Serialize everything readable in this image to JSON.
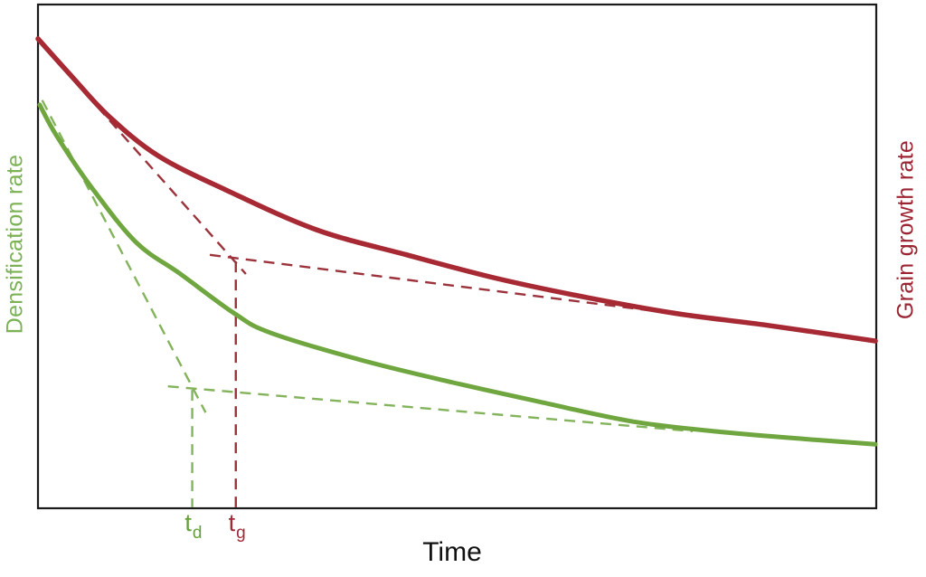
{
  "chart_data": {
    "type": "line",
    "title": "",
    "description": "Qualitative sintering schematic: densification rate and grain growth rate decay with time. Dashed initial- and final-slope tangents intersect to define characteristic times td (densification) and tg (grain growth). Axes are unlabeled/arbitrary units (no numeric ticks, no gridlines, no legend box).",
    "x_axis_label": "Time",
    "left_axis": {
      "label": "Densification rate",
      "color": "#7CB255"
    },
    "right_axis": {
      "label": "Grain growth rate",
      "color": "#9B2433"
    },
    "axis_ranges": {
      "x": "qualitative (no numeric scale)",
      "y": "qualitative (no numeric scale)"
    },
    "grid": false,
    "legend": "none (curves identified by colored axis labels)",
    "series": [
      {
        "id": "densification-rate-curve",
        "name": "Densification rate",
        "color": "#6FA63F",
        "style": "solid",
        "stroke_width": 5,
        "points": [
          [
            0.002,
            0.801
          ],
          [
            0.022,
            0.74
          ],
          [
            0.063,
            0.639
          ],
          [
            0.117,
            0.528
          ],
          [
            0.17,
            0.465
          ],
          [
            0.235,
            0.386
          ],
          [
            0.278,
            0.348
          ],
          [
            0.386,
            0.294
          ],
          [
            0.494,
            0.25
          ],
          [
            0.602,
            0.21
          ],
          [
            0.71,
            0.172
          ],
          [
            0.818,
            0.151
          ],
          [
            0.926,
            0.136
          ],
          [
            0.999,
            0.127
          ]
        ]
      },
      {
        "id": "grain-growth-rate-curve",
        "name": "Grain growth rate",
        "color": "#A62933",
        "style": "solid",
        "stroke_width": 5.5,
        "points": [
          [
            0.0,
            0.932
          ],
          [
            0.041,
            0.856
          ],
          [
            0.084,
            0.779
          ],
          [
            0.143,
            0.7
          ],
          [
            0.224,
            0.632
          ],
          [
            0.332,
            0.553
          ],
          [
            0.44,
            0.503
          ],
          [
            0.548,
            0.456
          ],
          [
            0.656,
            0.418
          ],
          [
            0.764,
            0.386
          ],
          [
            0.871,
            0.363
          ],
          [
            0.999,
            0.332
          ]
        ]
      }
    ],
    "annotations": [
      {
        "id": "green-initial-slope-tangent",
        "color": "#83B35B",
        "style": "dashed",
        "from": [
          0.005,
          0.81
        ],
        "to": [
          0.2,
          0.19
        ]
      },
      {
        "id": "green-final-slope-tangent",
        "color": "#83B35B",
        "style": "dashed",
        "from": [
          0.155,
          0.242
        ],
        "to": [
          0.781,
          0.153
        ]
      },
      {
        "id": "green-vertical-drop-td",
        "color": "#83B35B",
        "style": "dashed",
        "from": [
          0.184,
          0.235
        ],
        "to": [
          0.184,
          0.002
        ]
      },
      {
        "id": "red-initial-slope-tangent",
        "color": "#9C333C",
        "style": "dashed",
        "from": [
          0.071,
          0.797
        ],
        "to": [
          0.248,
          0.465
        ]
      },
      {
        "id": "red-final-slope-tangent",
        "color": "#9C333C",
        "style": "dashed",
        "from": [
          0.205,
          0.503
        ],
        "to": [
          0.762,
          0.386
        ]
      },
      {
        "id": "red-vertical-drop-tg",
        "color": "#9C333C",
        "style": "dashed",
        "from": [
          0.236,
          0.49
        ],
        "to": [
          0.236,
          0.002
        ]
      }
    ],
    "x_ticks": [
      {
        "id": "td",
        "base": "t",
        "sub": "d",
        "x": 0.184,
        "color": "#65A038"
      },
      {
        "id": "tg",
        "base": "t",
        "sub": "g",
        "x": 0.236,
        "color": "#A02A38"
      }
    ],
    "frame_color": "#1A1A1A"
  }
}
